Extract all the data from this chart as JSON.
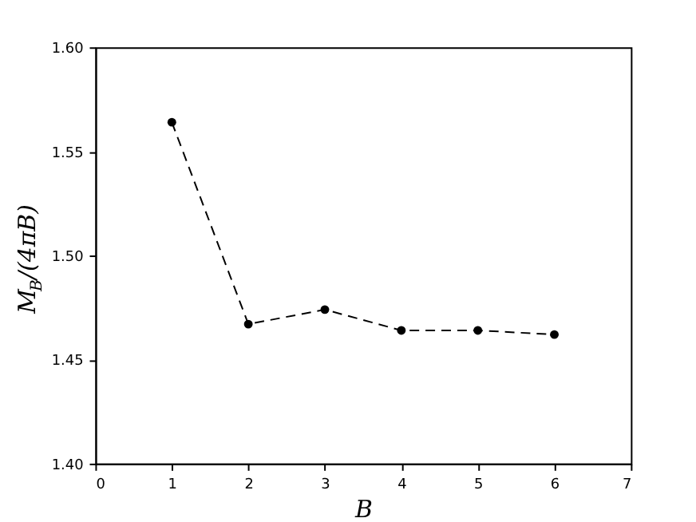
{
  "chart_data": {
    "type": "line",
    "xlabel": "B",
    "ylabel": "M$_{B}$/(4πB)",
    "x": [
      1,
      2,
      3,
      4,
      5,
      6
    ],
    "series": [
      {
        "color": "#000000",
        "values": [
          1.564,
          1.467,
          1.474,
          1.464,
          1.464,
          1.462
        ]
      }
    ],
    "xlim": [
      0,
      7
    ],
    "xticks": [
      0,
      1,
      2,
      3,
      4,
      5,
      6,
      7
    ],
    "ylim": [
      1.4,
      1.6
    ],
    "yticks": [
      {
        "value": 1.4,
        "label": "1.40"
      },
      1.45,
      {
        "value": 1.5,
        "label": "1.50"
      },
      1.55,
      {
        "value": 1.6,
        "label": "1.60"
      }
    ],
    "marker": "circle",
    "line_style": "dashed",
    "grid": false
  }
}
